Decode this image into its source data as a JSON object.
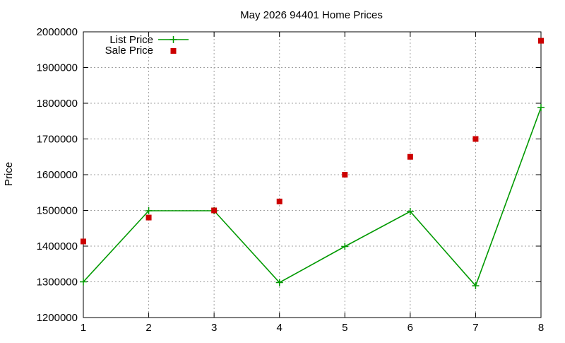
{
  "chart_data": {
    "type": "line",
    "title": "May 2026 94401 Home Prices",
    "xlabel": "",
    "ylabel": "Price",
    "x": [
      1,
      2,
      3,
      4,
      5,
      6,
      7,
      8
    ],
    "xlim": [
      1,
      8
    ],
    "ylim": [
      1200000,
      2000000
    ],
    "yticks": [
      1200000,
      1300000,
      1400000,
      1500000,
      1600000,
      1700000,
      1800000,
      1900000,
      2000000
    ],
    "xticks": [
      1,
      2,
      3,
      4,
      5,
      6,
      7,
      8
    ],
    "grid": true,
    "legend_position": "top-left",
    "series": [
      {
        "name": "List Price",
        "style": "line+cross",
        "color": "#009900",
        "values": [
          1300000,
          1499000,
          1499000,
          1298000,
          1399000,
          1497000,
          1289000,
          1788000
        ]
      },
      {
        "name": "Sale Price",
        "style": "square",
        "color": "#cc0000",
        "values": [
          1413000,
          1480000,
          1500000,
          1525000,
          1600000,
          1650000,
          1700000,
          1975000
        ]
      }
    ]
  }
}
